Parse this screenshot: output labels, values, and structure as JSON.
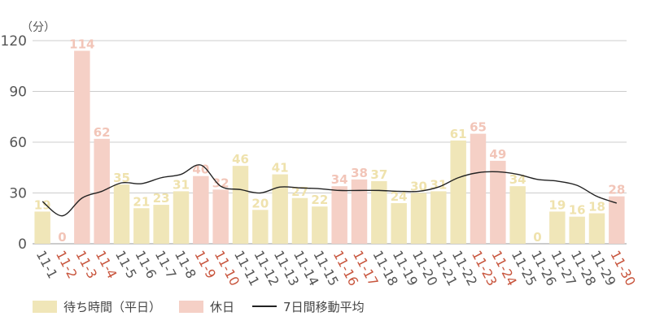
{
  "chart_data": {
    "type": "bar",
    "y_unit": "（分）",
    "ylim": [
      0,
      120
    ],
    "yticks": [
      "0",
      "30",
      "60",
      "90",
      "120"
    ],
    "grid": true,
    "categories": [
      "11-1",
      "11-2",
      "11-3",
      "11-4",
      "11-5",
      "11-6",
      "11-7",
      "11-8",
      "11-9",
      "11-10",
      "11-11",
      "11-12",
      "11-13",
      "11-14",
      "11-15",
      "11-16",
      "11-17",
      "11-18",
      "11-19",
      "11-20",
      "11-21",
      "11-22",
      "11-23",
      "11-24",
      "11-25",
      "11-26",
      "11-27",
      "11-28",
      "11-29",
      "11-30"
    ],
    "values": [
      19,
      0,
      114,
      62,
      35,
      21,
      23,
      31,
      40,
      32,
      46,
      20,
      41,
      27,
      22,
      34,
      38,
      37,
      24,
      30,
      31,
      61,
      65,
      49,
      34,
      0,
      19,
      16,
      18,
      28
    ],
    "holiday": [
      false,
      true,
      true,
      true,
      false,
      false,
      false,
      false,
      true,
      true,
      false,
      false,
      false,
      false,
      false,
      true,
      true,
      false,
      false,
      false,
      false,
      false,
      true,
      true,
      false,
      false,
      false,
      false,
      false,
      true
    ],
    "moving_average": [
      25,
      16.5,
      27,
      31,
      36,
      35.5,
      39,
      41,
      46.5,
      34,
      32,
      30,
      33.5,
      33,
      32.5,
      31.5,
      31.5,
      31.5,
      31,
      31,
      33.5,
      39,
      42,
      42.5,
      41,
      38,
      37,
      34.5,
      28,
      24
    ],
    "colors": {
      "weekday": "#f0e6b8",
      "holiday": "#f5d0c6",
      "weekday_label": "#efe2ad",
      "holiday_label": "#f2c5b8",
      "line": "#222222",
      "axis_text": "#555555",
      "holiday_tick": "#c8553d",
      "grid": "#cccccc"
    },
    "legend": {
      "weekday": "待ち時間（平日）",
      "holiday": "休日",
      "line": "7日間移動平均"
    }
  }
}
